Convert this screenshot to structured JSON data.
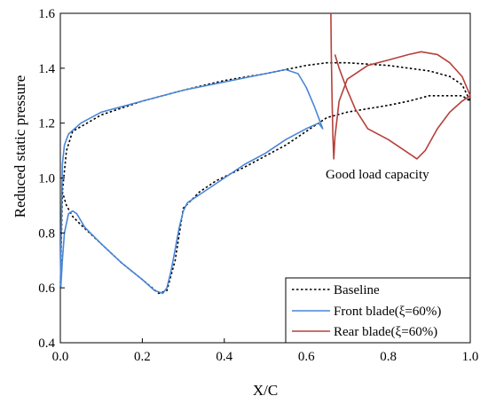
{
  "chart_data": {
    "type": "line",
    "xlabel": "X/C",
    "ylabel": "Reduced static pressure",
    "xlim": [
      0.0,
      1.0
    ],
    "ylim": [
      0.4,
      1.6
    ],
    "xticks": [
      "0.0",
      "0.2",
      "0.4",
      "0.6",
      "0.8",
      "1.0"
    ],
    "yticks": [
      "0.4",
      "0.6",
      "0.8",
      "1.0",
      "1.2",
      "1.4",
      "1.6"
    ],
    "annotation": "Good load capacity",
    "legend_position": "bottom-right",
    "grid": false,
    "series": [
      {
        "name": "Baseline",
        "color": "#000000",
        "dash": "dotted",
        "points": [
          [
            0.0,
            0.6
          ],
          [
            0.005,
            0.95
          ],
          [
            0.015,
            1.1
          ],
          [
            0.03,
            1.17
          ],
          [
            0.1,
            1.23
          ],
          [
            0.2,
            1.28
          ],
          [
            0.3,
            1.32
          ],
          [
            0.4,
            1.355
          ],
          [
            0.5,
            1.38
          ],
          [
            0.6,
            1.41
          ],
          [
            0.65,
            1.42
          ],
          [
            0.7,
            1.42
          ],
          [
            0.8,
            1.41
          ],
          [
            0.9,
            1.39
          ],
          [
            0.95,
            1.37
          ],
          [
            0.98,
            1.34
          ],
          [
            1.0,
            1.28
          ],
          [
            0.98,
            1.3
          ],
          [
            0.9,
            1.3
          ],
          [
            0.85,
            1.28
          ],
          [
            0.8,
            1.265
          ],
          [
            0.7,
            1.24
          ],
          [
            0.65,
            1.22
          ],
          [
            0.6,
            1.17
          ],
          [
            0.55,
            1.12
          ],
          [
            0.45,
            1.04
          ],
          [
            0.38,
            0.99
          ],
          [
            0.34,
            0.95
          ],
          [
            0.3,
            0.89
          ],
          [
            0.28,
            0.7
          ],
          [
            0.26,
            0.59
          ],
          [
            0.24,
            0.58
          ],
          [
            0.2,
            0.63
          ],
          [
            0.15,
            0.69
          ],
          [
            0.1,
            0.76
          ],
          [
            0.05,
            0.83
          ],
          [
            0.03,
            0.86
          ],
          [
            0.015,
            0.9
          ],
          [
            0.005,
            0.95
          ]
        ]
      },
      {
        "name": "Front blade(ξ=60%)",
        "color": "#4a86d6",
        "dash": "solid",
        "points": [
          [
            0.0,
            0.6
          ],
          [
            0.002,
            0.78
          ],
          [
            0.005,
            1.05
          ],
          [
            0.01,
            1.12
          ],
          [
            0.02,
            1.16
          ],
          [
            0.05,
            1.2
          ],
          [
            0.1,
            1.24
          ],
          [
            0.2,
            1.28
          ],
          [
            0.3,
            1.32
          ],
          [
            0.4,
            1.35
          ],
          [
            0.5,
            1.38
          ],
          [
            0.55,
            1.395
          ],
          [
            0.58,
            1.38
          ],
          [
            0.6,
            1.33
          ],
          [
            0.62,
            1.26
          ],
          [
            0.635,
            1.2
          ],
          [
            0.64,
            1.18
          ],
          [
            0.63,
            1.2
          ],
          [
            0.6,
            1.18
          ],
          [
            0.55,
            1.14
          ],
          [
            0.5,
            1.09
          ],
          [
            0.45,
            1.05
          ],
          [
            0.4,
            1.0
          ],
          [
            0.35,
            0.95
          ],
          [
            0.31,
            0.91
          ],
          [
            0.3,
            0.88
          ],
          [
            0.29,
            0.82
          ],
          [
            0.28,
            0.74
          ],
          [
            0.27,
            0.66
          ],
          [
            0.26,
            0.6
          ],
          [
            0.25,
            0.58
          ],
          [
            0.23,
            0.59
          ],
          [
            0.2,
            0.63
          ],
          [
            0.15,
            0.69
          ],
          [
            0.1,
            0.76
          ],
          [
            0.06,
            0.82
          ],
          [
            0.04,
            0.87
          ],
          [
            0.03,
            0.88
          ],
          [
            0.02,
            0.87
          ],
          [
            0.01,
            0.8
          ],
          [
            0.005,
            0.7
          ],
          [
            0.001,
            0.6
          ]
        ]
      },
      {
        "name": "Rear blade(ξ=60%)",
        "color": "#b5403b",
        "dash": "solid",
        "points": [
          [
            0.66,
            1.6
          ],
          [
            0.661,
            1.45
          ],
          [
            0.663,
            1.28
          ],
          [
            0.665,
            1.15
          ],
          [
            0.667,
            1.07
          ],
          [
            0.67,
            1.15
          ],
          [
            0.68,
            1.28
          ],
          [
            0.7,
            1.36
          ],
          [
            0.75,
            1.41
          ],
          [
            0.8,
            1.43
          ],
          [
            0.85,
            1.45
          ],
          [
            0.88,
            1.46
          ],
          [
            0.92,
            1.45
          ],
          [
            0.95,
            1.42
          ],
          [
            0.98,
            1.37
          ],
          [
            1.0,
            1.3
          ],
          [
            0.98,
            1.28
          ],
          [
            0.95,
            1.24
          ],
          [
            0.92,
            1.18
          ],
          [
            0.89,
            1.1
          ],
          [
            0.87,
            1.07
          ],
          [
            0.84,
            1.1
          ],
          [
            0.8,
            1.14
          ],
          [
            0.75,
            1.18
          ],
          [
            0.72,
            1.25
          ],
          [
            0.7,
            1.32
          ],
          [
            0.68,
            1.4
          ],
          [
            0.67,
            1.45
          ]
        ]
      }
    ]
  }
}
